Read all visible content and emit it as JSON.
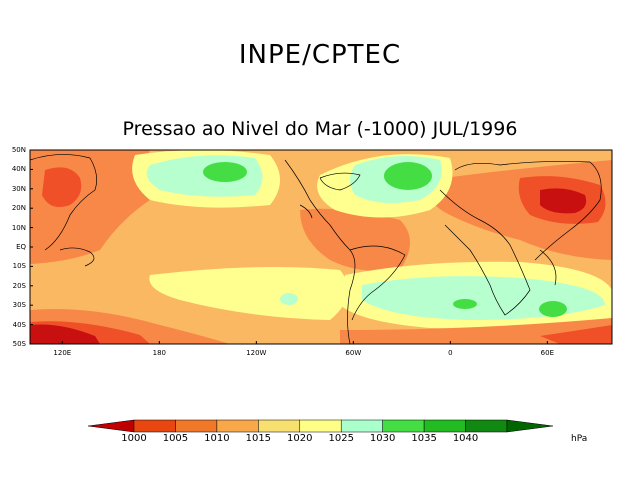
{
  "header": {
    "org": "INPE/CPTEC",
    "title": "Pressao ao Nivel do Mar (-1000) JUL/1996"
  },
  "axes": {
    "lat_labels": [
      "50N",
      "40N",
      "30N",
      "20N",
      "10N",
      "EQ",
      "10S",
      "20S",
      "30S",
      "40S",
      "50S"
    ],
    "lon_labels": [
      "120E",
      "180",
      "120W",
      "60W",
      "0",
      "60E"
    ]
  },
  "colorbar": {
    "levels": [
      "1000",
      "1005",
      "1010",
      "1015",
      "1020",
      "1025",
      "1030",
      "1035",
      "1040"
    ],
    "colors": [
      "#c00000",
      "#e84810",
      "#f07828",
      "#f8a848",
      "#f8e070",
      "#ffff88",
      "#aaffcc",
      "#44dd44",
      "#22bb22",
      "#118811",
      "#006600"
    ],
    "units": "hPa"
  },
  "palette": {
    "c1000": "#c81010",
    "c1005": "#f05028",
    "c1010": "#f88848",
    "c1015": "#fbb862",
    "c1020": "#ffff90",
    "c1025": "#b8ffd0",
    "c1030": "#44dd44",
    "land_outline": "#000000"
  }
}
